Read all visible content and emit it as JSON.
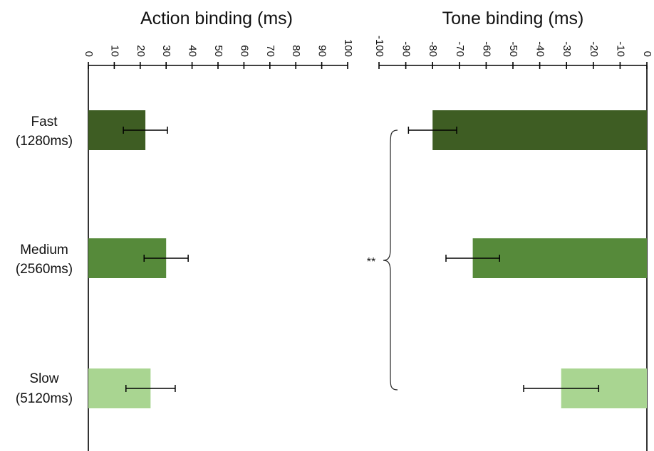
{
  "categories": [
    {
      "name": "Fast",
      "sub": "(1280ms)"
    },
    {
      "name": "Medium",
      "sub": "(2560ms)"
    },
    {
      "name": "Slow",
      "sub": "(5120ms)"
    }
  ],
  "significance": "**",
  "colors": {
    "fast": "#3e5d23",
    "medium": "#568a3a",
    "slow": "#a9d591",
    "axis": "#000000"
  },
  "chart_data": [
    {
      "type": "bar",
      "orientation": "horizontal",
      "title": "Action binding (ms)",
      "categories": [
        "Fast (1280ms)",
        "Medium (2560ms)",
        "Slow (5120ms)"
      ],
      "values": [
        22,
        30,
        24
      ],
      "error": [
        8.5,
        8.5,
        9.5
      ],
      "xlim": [
        0,
        100
      ],
      "ticks": [
        "0",
        "10",
        "20",
        "30",
        "40",
        "50",
        "60",
        "70",
        "80",
        "90",
        "100"
      ],
      "grid": false
    },
    {
      "type": "bar",
      "orientation": "horizontal",
      "title": "Tone binding (ms)",
      "categories": [
        "Fast (1280ms)",
        "Medium (2560ms)",
        "Slow (5120ms)"
      ],
      "values": [
        -80,
        -65,
        -32
      ],
      "error": [
        9,
        10,
        14
      ],
      "xlim": [
        -100,
        0
      ],
      "ticks": [
        "-100",
        "-90",
        "-80",
        "-70",
        "-60",
        "-50",
        "-40",
        "-30",
        "-20",
        "-10",
        "0"
      ],
      "grid": false
    }
  ]
}
